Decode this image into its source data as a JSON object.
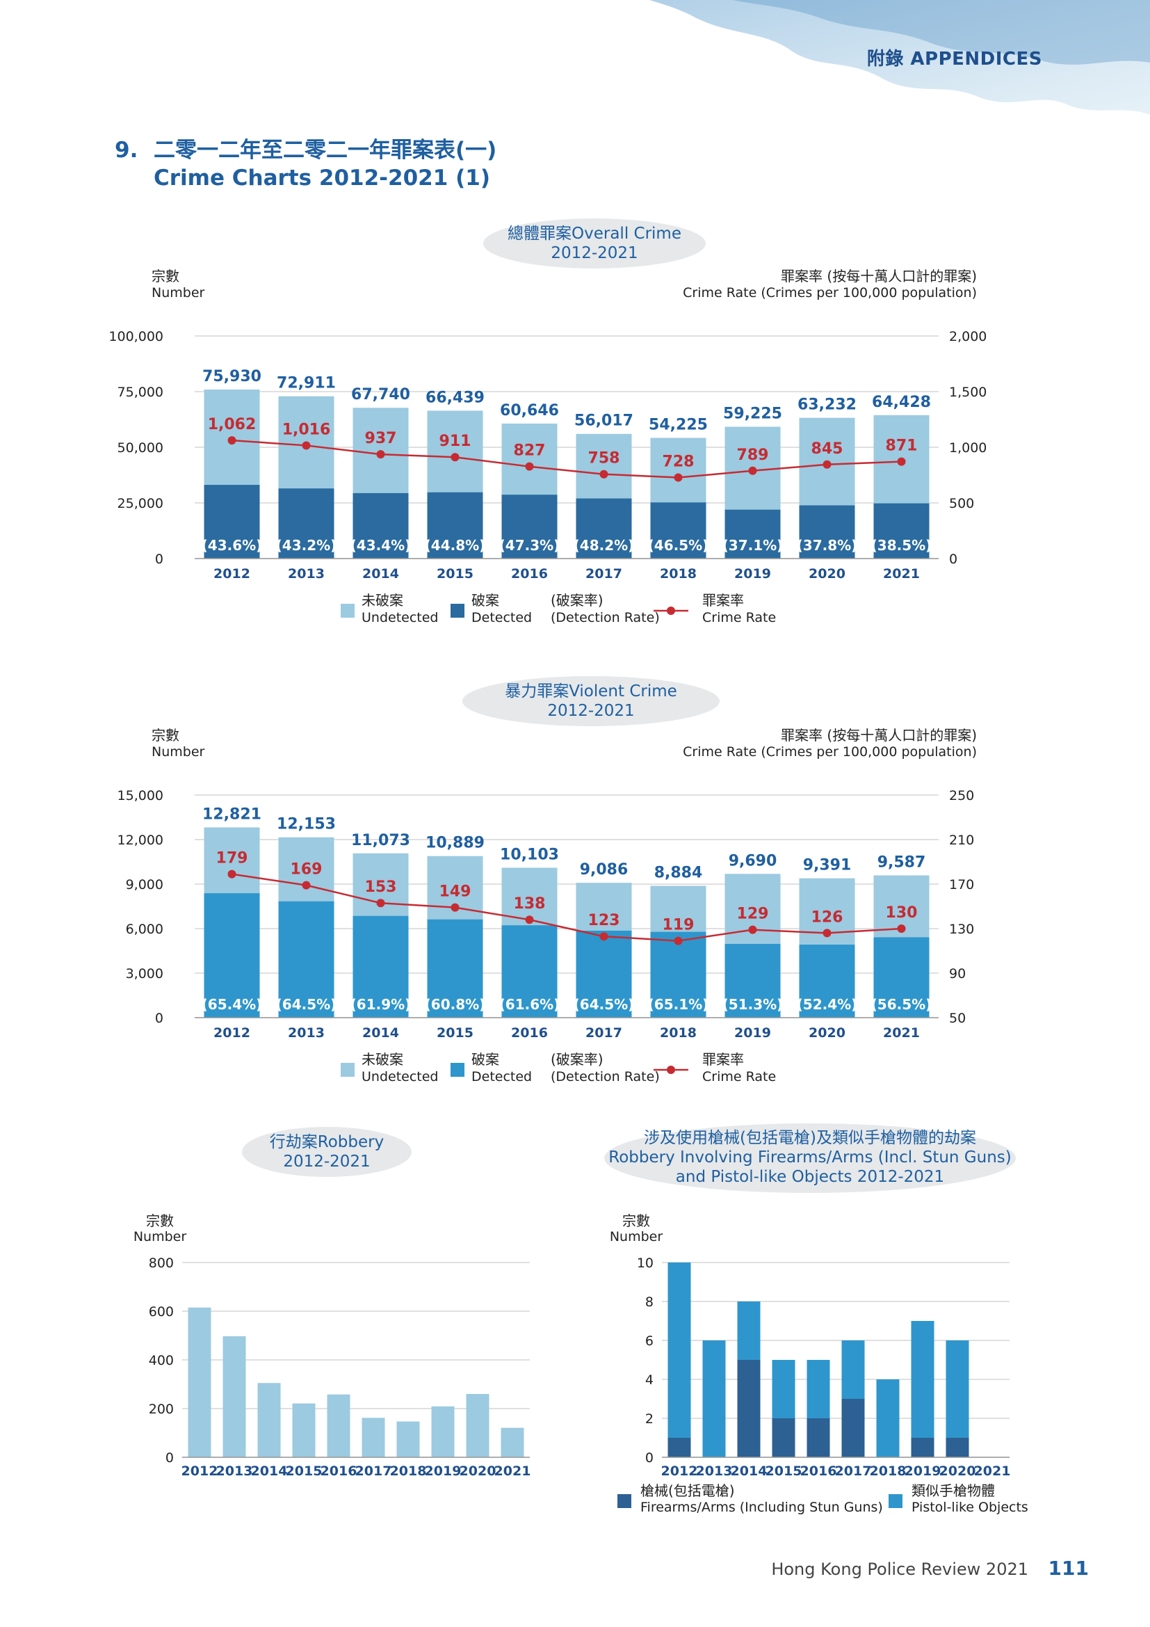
{
  "header": {
    "appendices_label": "附錄 APPENDICES"
  },
  "section": {
    "number": "9.",
    "title_zh": "二零一二年至二零二一年罪案表(一)",
    "title_en": "Crime Charts 2012-2021 (1)"
  },
  "colors": {
    "undetected": "#9ccae0",
    "detected_overall": "#2b6b9f",
    "detected_violent": "#2e96cc",
    "rate": "#c62b32",
    "firearms": "#2d6093",
    "pistol": "#2e96cc",
    "robbery": "#9ccae0",
    "title_blue": "#1f5fa0"
  },
  "footer": {
    "publication": "Hong Kong Police Review 2021",
    "page": "111"
  },
  "chart_data": [
    {
      "id": "overall",
      "type": "bar",
      "title_zh": "總體罪案Overall Crime",
      "title_year": "2012-2021",
      "left_axis_label_zh": "宗數",
      "left_axis_label_en": "Number",
      "right_axis_label_zh": "罪案率 (按每十萬人口計的罪案)",
      "right_axis_label_en": "Crime Rate (Crimes per 100,000 population)",
      "categories": [
        "2012",
        "2013",
        "2014",
        "2015",
        "2016",
        "2017",
        "2018",
        "2019",
        "2020",
        "2021"
      ],
      "totals": [
        75930,
        72911,
        67740,
        66439,
        60646,
        56017,
        54225,
        59225,
        63232,
        64428
      ],
      "total_labels": [
        "75,930",
        "72,911",
        "67,740",
        "66,439",
        "60,646",
        "56,017",
        "54,225",
        "59,225",
        "63,232",
        "64,428"
      ],
      "detection_rate": [
        43.6,
        43.2,
        43.4,
        44.8,
        47.3,
        48.2,
        46.5,
        37.1,
        37.8,
        38.5
      ],
      "detection_labels": [
        "(43.6%)",
        "(43.2%)",
        "(43.4%)",
        "(44.8%)",
        "(47.3%)",
        "(48.2%)",
        "(46.5%)",
        "(37.1%)",
        "(37.8%)",
        "(38.5%)"
      ],
      "crime_rate": [
        1062,
        1016,
        937,
        911,
        827,
        758,
        728,
        789,
        845,
        871
      ],
      "crime_rate_labels": [
        "1,062",
        "1,016",
        "937",
        "911",
        "827",
        "758",
        "728",
        "789",
        "845",
        "871"
      ],
      "ylim": [
        0,
        100000
      ],
      "yticks": [
        0,
        25000,
        50000,
        75000,
        100000
      ],
      "ytick_labels": [
        "0",
        "25,000",
        "50,000",
        "75,000",
        "100,000"
      ],
      "y2lim": [
        0,
        2000
      ],
      "y2ticks": [
        0,
        500,
        1000,
        1500,
        2000
      ],
      "y2tick_labels": [
        "0",
        "500",
        "1,000",
        "1,500",
        "2,000"
      ],
      "grid": true,
      "legend": [
        {
          "zh": "未破案",
          "en": "Undetected",
          "kind": "box",
          "color": "#9ccae0"
        },
        {
          "zh": "破案",
          "en": "Detected",
          "kind": "box",
          "color": "#2b6b9f"
        },
        {
          "zh": "(破案率)",
          "en": "(Detection Rate)",
          "kind": "none",
          "color": ""
        },
        {
          "zh": "罪案率",
          "en": "Crime Rate",
          "kind": "line",
          "color": "#c62b32"
        }
      ]
    },
    {
      "id": "violent",
      "type": "bar",
      "title_zh": "暴力罪案Violent Crime",
      "title_year": "2012-2021",
      "left_axis_label_zh": "宗數",
      "left_axis_label_en": "Number",
      "right_axis_label_zh": "罪案率 (按每十萬人口計的罪案)",
      "right_axis_label_en": "Crime Rate (Crimes per 100,000 population)",
      "categories": [
        "2012",
        "2013",
        "2014",
        "2015",
        "2016",
        "2017",
        "2018",
        "2019",
        "2020",
        "2021"
      ],
      "totals": [
        12821,
        12153,
        11073,
        10889,
        10103,
        9086,
        8884,
        9690,
        9391,
        9587
      ],
      "total_labels": [
        "12,821",
        "12,153",
        "11,073",
        "10,889",
        "10,103",
        "9,086",
        "8,884",
        "9,690",
        "9,391",
        "9,587"
      ],
      "detection_rate": [
        65.4,
        64.5,
        61.9,
        60.8,
        61.6,
        64.5,
        65.1,
        51.3,
        52.4,
        56.5
      ],
      "detection_labels": [
        "(65.4%)",
        "(64.5%)",
        "(61.9%)",
        "(60.8%)",
        "(61.6%)",
        "(64.5%)",
        "(65.1%)",
        "(51.3%)",
        "(52.4%)",
        "(56.5%)"
      ],
      "crime_rate": [
        179,
        169,
        153,
        149,
        138,
        123,
        119,
        129,
        126,
        130
      ],
      "crime_rate_labels": [
        "179",
        "169",
        "153",
        "149",
        "138",
        "123",
        "119",
        "129",
        "126",
        "130"
      ],
      "ylim": [
        0,
        15000
      ],
      "yticks": [
        0,
        3000,
        6000,
        9000,
        12000,
        15000
      ],
      "ytick_labels": [
        "0",
        "3,000",
        "6,000",
        "9,000",
        "12,000",
        "15,000"
      ],
      "y2lim": [
        50,
        250
      ],
      "y2ticks": [
        50,
        90,
        130,
        170,
        210,
        250
      ],
      "y2tick_labels": [
        "50",
        "90",
        "130",
        "170",
        "210",
        "250"
      ],
      "grid": true,
      "legend": [
        {
          "zh": "未破案",
          "en": "Undetected",
          "kind": "box",
          "color": "#9ccae0"
        },
        {
          "zh": "破案",
          "en": "Detected",
          "kind": "box",
          "color": "#2e96cc"
        },
        {
          "zh": "(破案率)",
          "en": "(Detection Rate)",
          "kind": "none",
          "color": ""
        },
        {
          "zh": "罪案率",
          "en": "Crime Rate",
          "kind": "line",
          "color": "#c62b32"
        }
      ]
    },
    {
      "id": "robbery",
      "type": "bar",
      "title_zh": "行劫案Robbery",
      "title_year": "2012-2021",
      "ylabel_zh": "宗數",
      "ylabel_en": "Number",
      "categories": [
        "2012",
        "2013",
        "2014",
        "2015",
        "2016",
        "2017",
        "2018",
        "2019",
        "2020",
        "2021"
      ],
      "values": [
        615,
        497,
        305,
        221,
        258,
        162,
        147,
        209,
        260,
        121
      ],
      "ylim": [
        0,
        800
      ],
      "yticks": [
        0,
        200,
        400,
        600,
        800
      ],
      "ytick_labels": [
        "0",
        "200",
        "400",
        "600",
        "800"
      ],
      "grid": true
    },
    {
      "id": "firearms",
      "type": "bar",
      "title_line1": "涉及使用槍械(包括電槍)及類似手槍物體的劫案",
      "title_line2": "Robbery Involving Firearms/Arms (Incl. Stun Guns)",
      "title_line3": "and Pistol-like Objects 2012-2021",
      "ylabel_zh": "宗數",
      "ylabel_en": "Number",
      "categories": [
        "2012",
        "2013",
        "2014",
        "2015",
        "2016",
        "2017",
        "2018",
        "2019",
        "2020",
        "2021"
      ],
      "series": [
        {
          "name": "槍械(包括電槍) Firearms/Arms (Including Stun Guns)",
          "values": [
            1,
            0,
            5,
            2,
            2,
            3,
            0,
            1,
            1,
            0
          ]
        },
        {
          "name": "類似手槍物體 Pistol-like Objects",
          "values": [
            9,
            6,
            3,
            3,
            3,
            3,
            4,
            6,
            5,
            0
          ]
        }
      ],
      "ylim": [
        0,
        10
      ],
      "yticks": [
        0,
        2,
        4,
        6,
        8,
        10
      ],
      "ytick_labels": [
        "0",
        "2",
        "4",
        "6",
        "8",
        "10"
      ],
      "grid": true,
      "legend": [
        {
          "zh": "槍械(包括電槍)",
          "en": "Firearms/Arms (Including Stun Guns)",
          "color": "#2d6093"
        },
        {
          "zh": "類似手槍物體",
          "en": "Pistol-like Objects",
          "color": "#2e96cc"
        }
      ]
    }
  ]
}
